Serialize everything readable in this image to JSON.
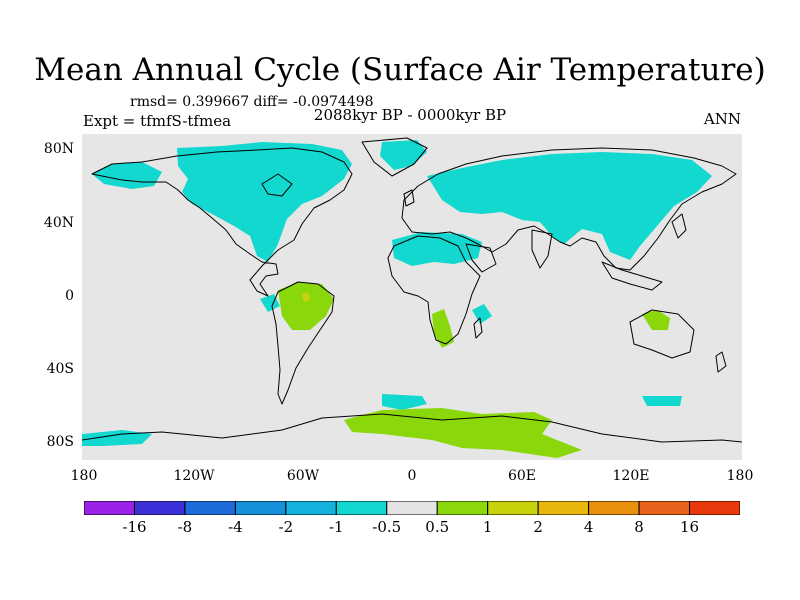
{
  "title": "Mean Annual Cycle (Surface Air Temperature)",
  "stats": {
    "text": "rmsd= 0.399667  diff= -0.0974498"
  },
  "expt": "Expt = tfmfS-tfmea",
  "period": "2088kyr BP - 0000kyr BP",
  "season": "ANN",
  "lat_labels": [
    "80N",
    "40N",
    "0",
    "40S",
    "80S"
  ],
  "lon_labels": [
    "180",
    "120W",
    "60W",
    "0",
    "60E",
    "120E",
    "180"
  ],
  "colorbar": {
    "colors": [
      "#9a22e6",
      "#3b30d8",
      "#1e6bdc",
      "#1790da",
      "#12b2dc",
      "#12d8d0",
      "#e4e4e4",
      "#8ad80c",
      "#c8d20c",
      "#e8b60c",
      "#e8900c",
      "#e8621c",
      "#e8380c"
    ],
    "labels": [
      "-16",
      "-8",
      "-4",
      "-2",
      "-1",
      "-0.5",
      "0.5",
      "1",
      "2",
      "4",
      "8",
      "16"
    ]
  },
  "chart_data": {
    "type": "filled-contour map",
    "variable": "Surface Air Temperature difference",
    "levels": [
      -16,
      -8,
      -4,
      -2,
      -1,
      -0.5,
      0.5,
      1,
      2,
      4,
      8,
      16
    ],
    "lat_range": [
      -90,
      90
    ],
    "lon_range": [
      -180,
      180
    ]
  }
}
